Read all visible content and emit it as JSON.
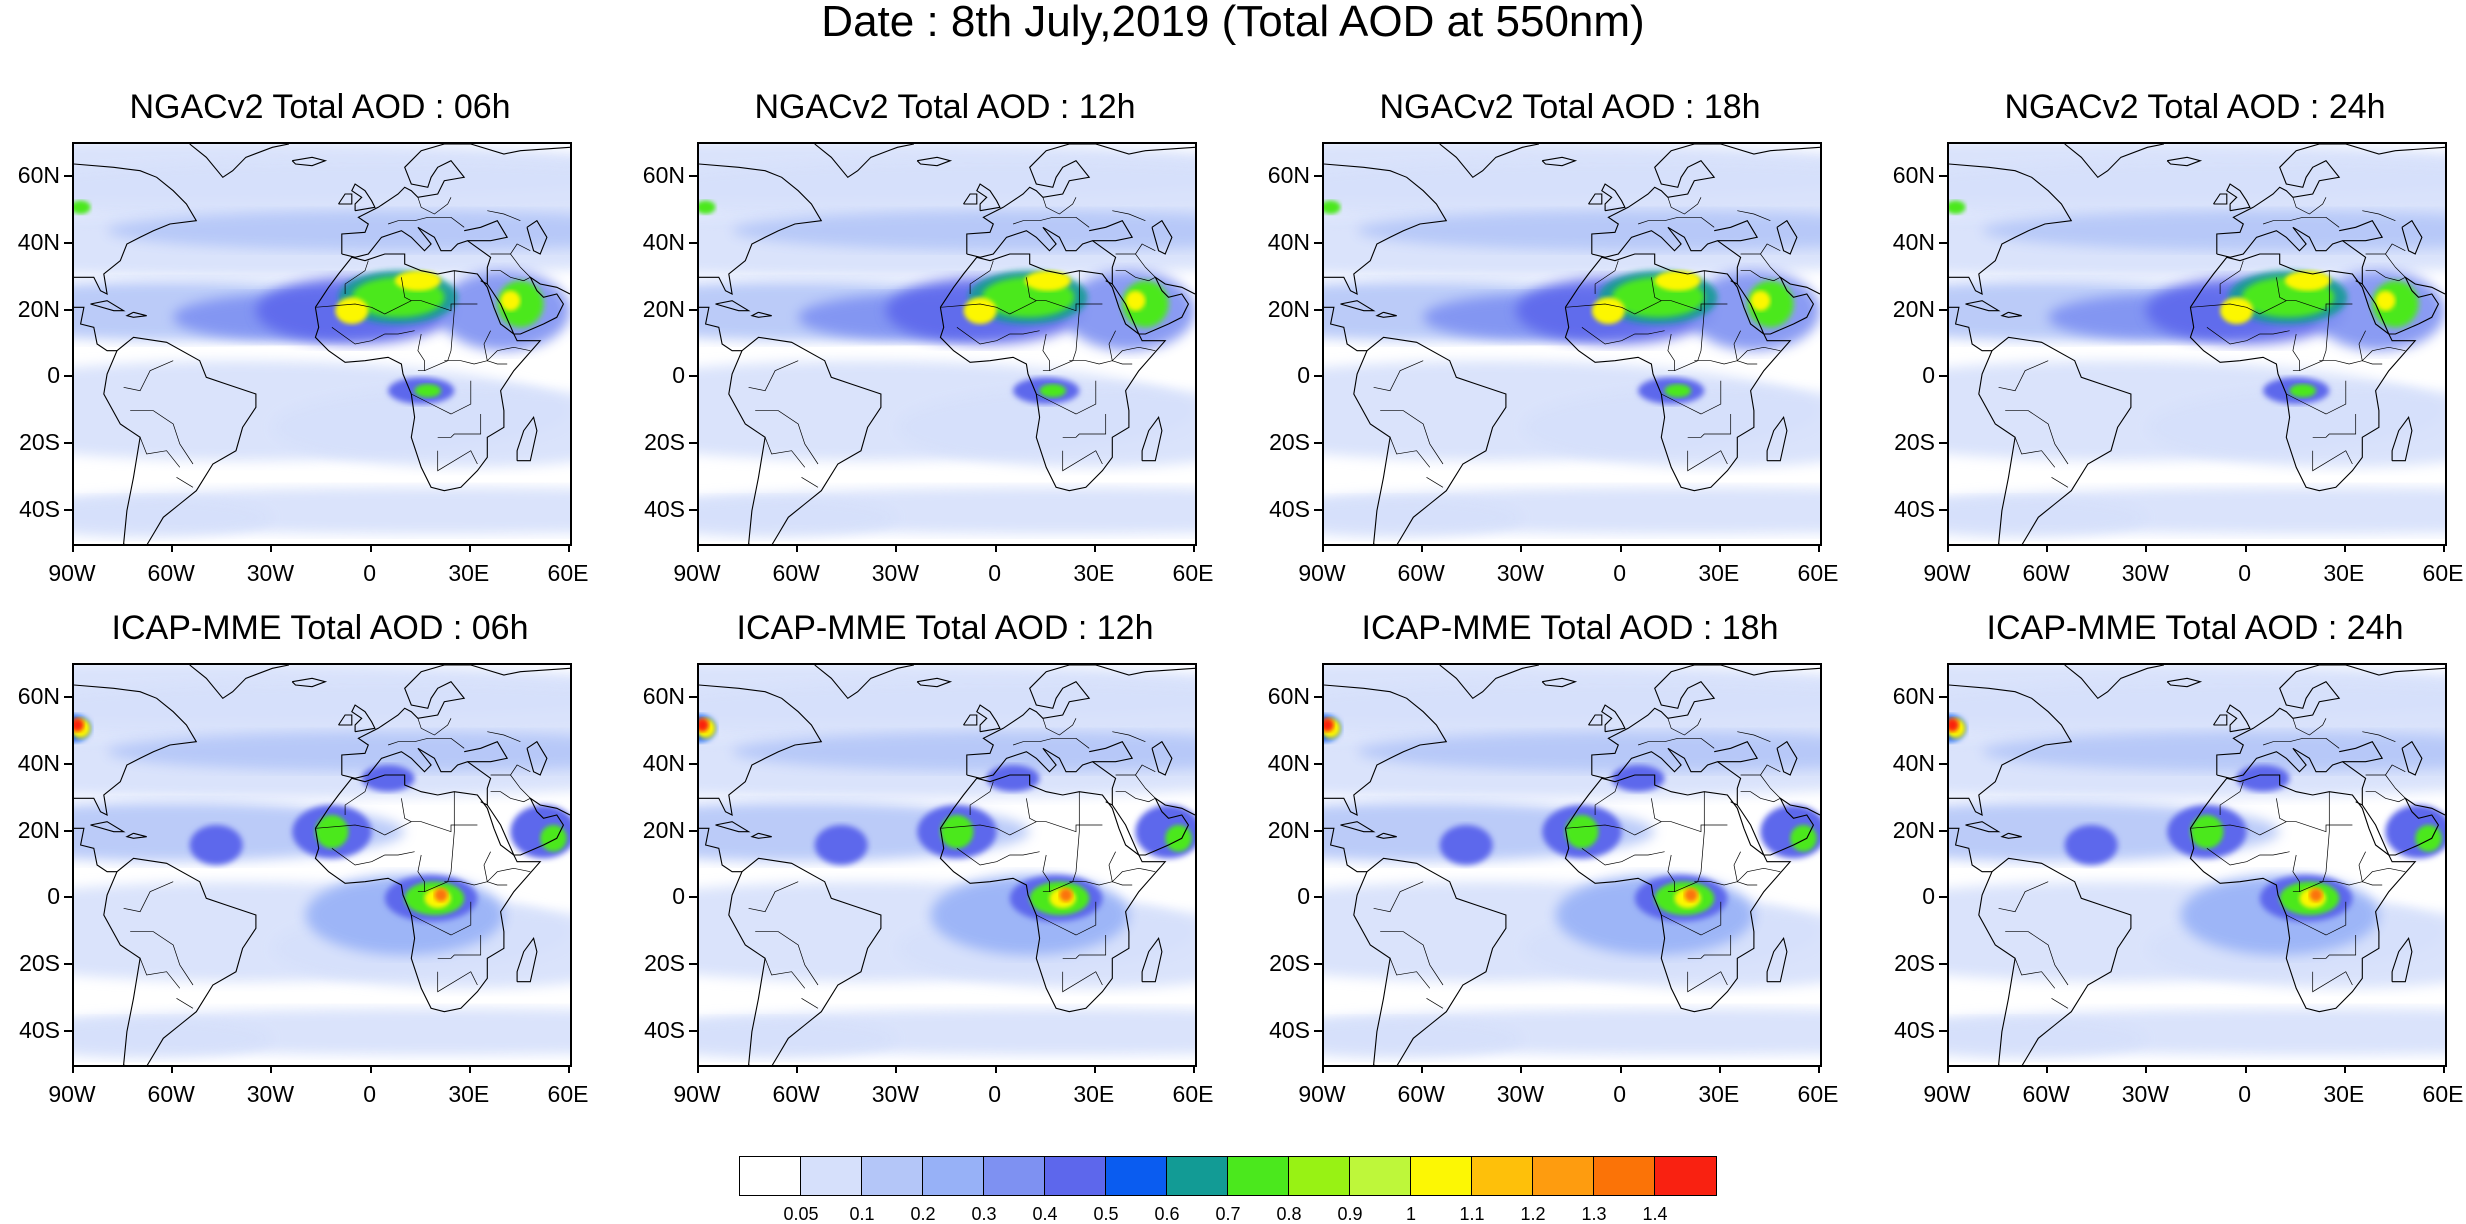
{
  "title": "Date : 8th July,2019 (Total AOD at 550nm)",
  "panels": [
    {
      "title": "NGACv2 Total AOD : 06h",
      "model": "NGACv2",
      "lead": "06h"
    },
    {
      "title": "NGACv2 Total AOD : 12h",
      "model": "NGACv2",
      "lead": "12h"
    },
    {
      "title": "NGACv2 Total AOD : 18h",
      "model": "NGACv2",
      "lead": "18h"
    },
    {
      "title": "NGACv2 Total AOD : 24h",
      "model": "NGACv2",
      "lead": "24h"
    },
    {
      "title": "ICAP-MME Total AOD : 06h",
      "model": "ICAP-MME",
      "lead": "06h"
    },
    {
      "title": "ICAP-MME Total AOD : 12h",
      "model": "ICAP-MME",
      "lead": "12h"
    },
    {
      "title": "ICAP-MME Total AOD : 18h",
      "model": "ICAP-MME",
      "lead": "18h"
    },
    {
      "title": "ICAP-MME Total AOD : 24h",
      "model": "ICAP-MME",
      "lead": "24h"
    }
  ],
  "lat_labels": [
    "60N",
    "40N",
    "20N",
    "0",
    "20S",
    "40S"
  ],
  "lon_labels": [
    "90W",
    "60W",
    "30W",
    "0",
    "30E",
    "60E"
  ],
  "colorbar": {
    "labels": [
      "0.05",
      "0.1",
      "0.2",
      "0.3",
      "0.4",
      "0.5",
      "0.6",
      "0.7",
      "0.8",
      "0.9",
      "1",
      "1.1",
      "1.2",
      "1.3",
      "1.4"
    ],
    "colors": [
      "#ffffff",
      "#d6e0fb",
      "#b4c6f8",
      "#97b1f7",
      "#7e91f2",
      "#5d67ec",
      "#0a5cf0",
      "#129b95",
      "#4be81d",
      "#98f214",
      "#bef73a",
      "#fcf704",
      "#fec00a",
      "#fe9c0f",
      "#fb7307",
      "#f92111"
    ]
  },
  "map_extent": {
    "lon_min": -90,
    "lon_max": 60,
    "lat_min": -50,
    "lat_max": 70
  }
}
